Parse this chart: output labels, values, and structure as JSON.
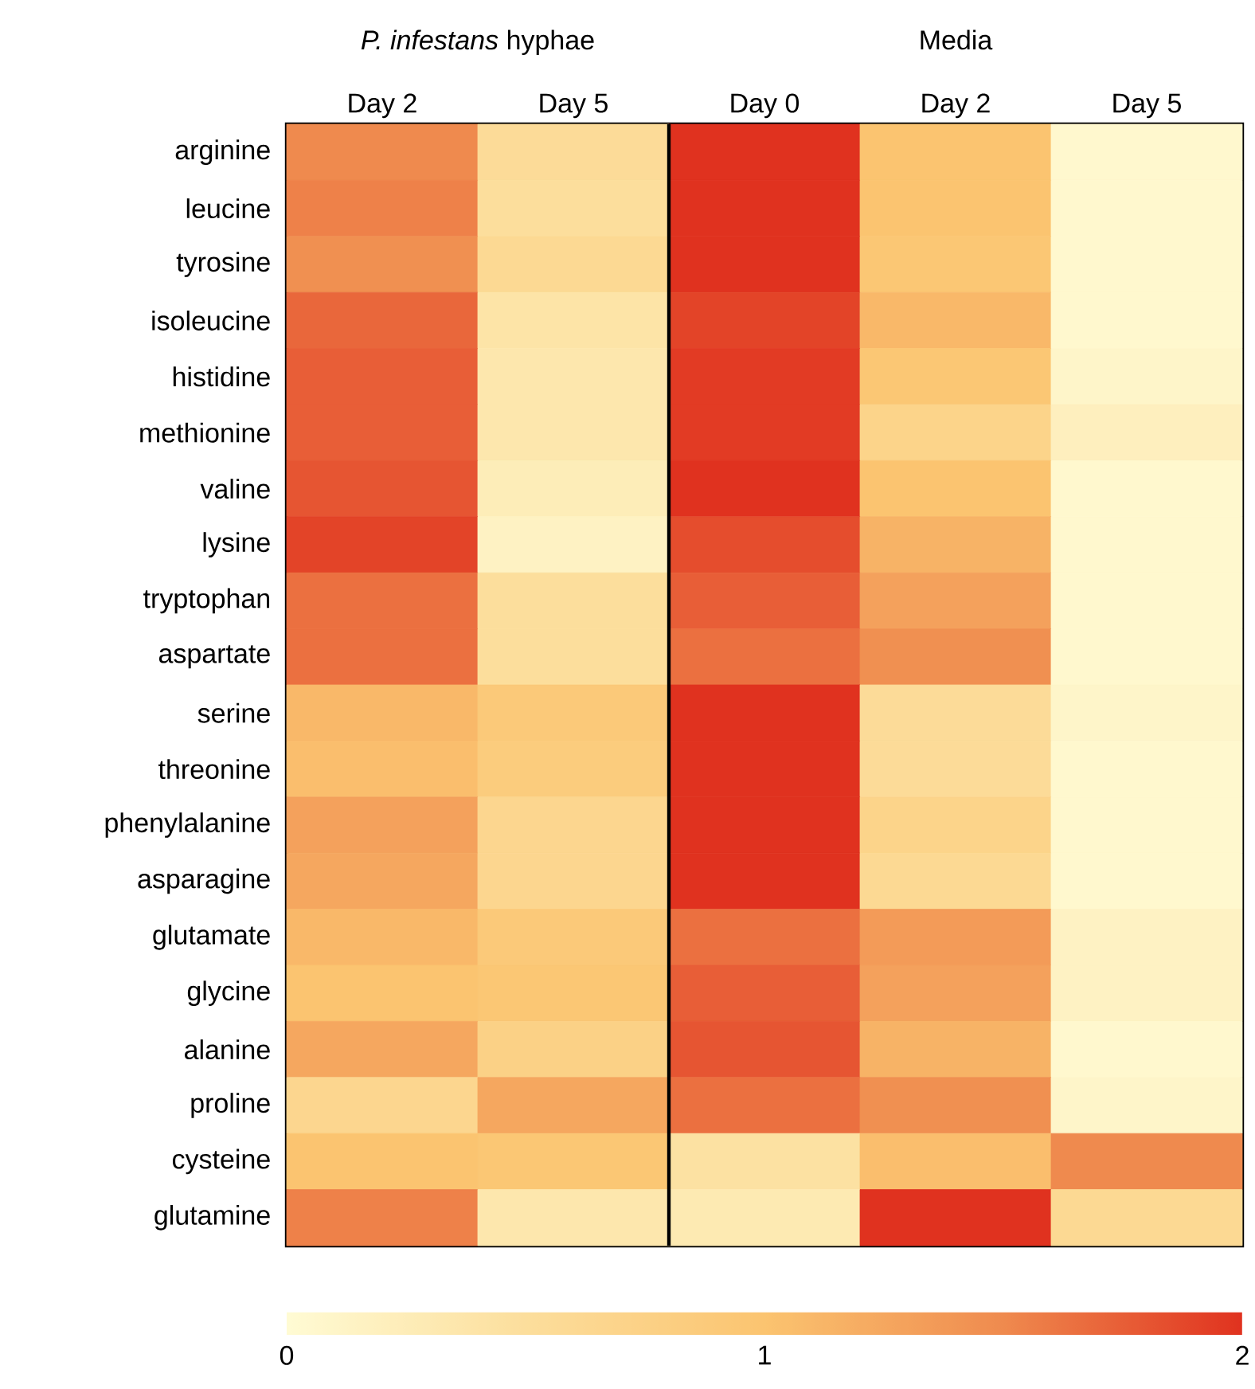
{
  "chart_data": {
    "type": "heatmap",
    "categories": [
      "Day 2",
      "Day 5",
      "Day 0",
      "Day 2",
      "Day 5"
    ],
    "y_categories": [
      "arginine",
      "leucine",
      "tyrosine",
      "isoleucine",
      "histidine",
      "methionine",
      "valine",
      "lysine",
      "tryptophan",
      "aspartate",
      "serine",
      "threonine",
      "phenylalanine",
      "asparagine",
      "glutamate",
      "glycine",
      "alanine",
      "proline",
      "cysteine",
      "glutamine"
    ],
    "cells": [
      [
        1.5,
        0.55,
        2.0,
        1.0,
        0.05
      ],
      [
        1.55,
        0.5,
        2.0,
        1.0,
        0.05
      ],
      [
        1.45,
        0.6,
        2.0,
        0.95,
        0.05
      ],
      [
        1.7,
        0.4,
        1.9,
        1.1,
        0.05
      ],
      [
        1.75,
        0.35,
        1.95,
        0.95,
        0.1
      ],
      [
        1.75,
        0.35,
        1.95,
        0.7,
        0.2
      ],
      [
        1.8,
        0.25,
        2.0,
        1.0,
        0.05
      ],
      [
        1.9,
        0.15,
        1.85,
        1.15,
        0.05
      ],
      [
        1.65,
        0.5,
        1.75,
        1.3,
        0.05
      ],
      [
        1.65,
        0.5,
        1.65,
        1.45,
        0.05
      ],
      [
        1.1,
        0.9,
        2.0,
        0.55,
        0.1
      ],
      [
        1.05,
        0.85,
        2.0,
        0.55,
        0.05
      ],
      [
        1.3,
        0.65,
        2.0,
        0.7,
        0.05
      ],
      [
        1.25,
        0.65,
        2.0,
        0.6,
        0.05
      ],
      [
        1.1,
        0.9,
        1.65,
        1.35,
        0.15
      ],
      [
        1.0,
        0.95,
        1.75,
        1.3,
        0.15
      ],
      [
        1.25,
        0.75,
        1.8,
        1.15,
        0.05
      ],
      [
        0.65,
        1.25,
        1.65,
        1.45,
        0.1
      ],
      [
        1.0,
        0.95,
        0.45,
        1.05,
        1.5
      ],
      [
        1.55,
        0.35,
        0.3,
        2.0,
        0.6
      ]
    ],
    "clim": [
      0,
      2
    ],
    "cticks": [
      0,
      1,
      2
    ],
    "annotations": [
      "*P. infestans* hyphae",
      "Media"
    ]
  }
}
